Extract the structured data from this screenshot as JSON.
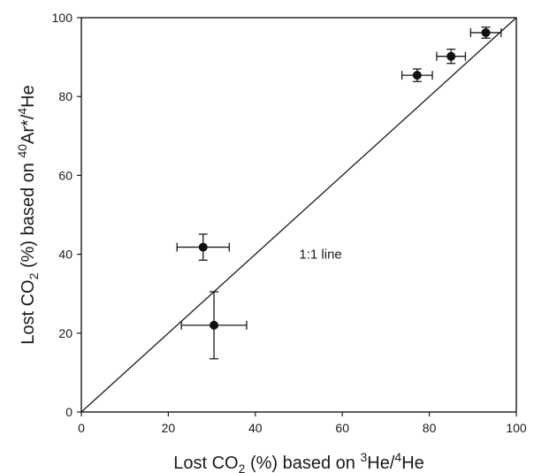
{
  "chart_data": {
    "type": "scatter",
    "xlabel": {
      "prefix": "Lost CO",
      "sub": "2",
      "mid": " (%) based on ",
      "sup1": "3",
      "mid2": "He/",
      "sup2": "4",
      "tail": "He"
    },
    "ylabel": {
      "prefix": "Lost CO",
      "sub": "2",
      "mid": " (%) based on ",
      "sup1": "40",
      "mid2": "Ar*/",
      "sup2": "4",
      "tail": "He"
    },
    "xlim": [
      0,
      100
    ],
    "ylim": [
      0,
      100
    ],
    "xticks": [
      "0",
      "20",
      "40",
      "60",
      "80",
      "100"
    ],
    "yticks": [
      "0",
      "20",
      "40",
      "60",
      "80",
      "100"
    ],
    "grid": false,
    "points": [
      {
        "x": 28,
        "y": 41.8,
        "xerr": 6,
        "yerr": 3.3
      },
      {
        "x": 30.5,
        "y": 22,
        "xerr": 7.5,
        "yerr": 8.5
      },
      {
        "x": 77.2,
        "y": 85.4,
        "xerr": 3.5,
        "yerr": 1.6
      },
      {
        "x": 85,
        "y": 90.2,
        "xerr": 3.3,
        "yerr": 1.8
      },
      {
        "x": 93,
        "y": 96.2,
        "xerr": 3.5,
        "yerr": 1.4
      }
    ],
    "reference_line": {
      "from": [
        0,
        0
      ],
      "to": [
        100,
        100
      ],
      "label": "1:1 line",
      "label_at": [
        55,
        40
      ]
    },
    "marker_color": "#111111",
    "line_color": "#1a1a1a"
  }
}
